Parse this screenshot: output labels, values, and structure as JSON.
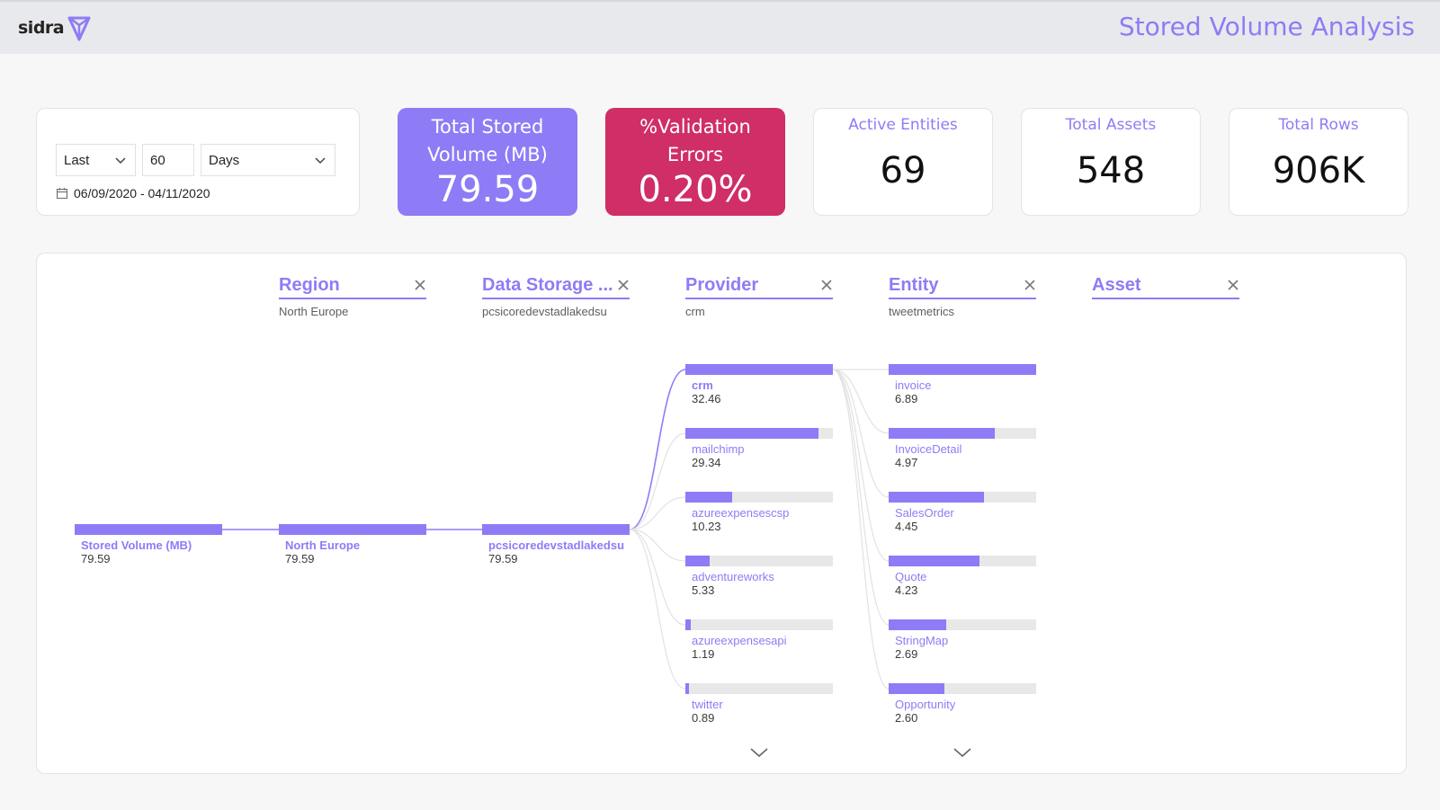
{
  "header": {
    "logo_text": "sidra",
    "title": "Stored Volume Analysis"
  },
  "filter": {
    "period": "Last",
    "amount": "60",
    "unit": "Days",
    "date_range": "06/09/2020 - 04/11/2020"
  },
  "kpis": {
    "total_stored": {
      "label_line1": "Total Stored",
      "label_line2": "Volume (MB)",
      "value": "79.59",
      "color": "#8d7cf6"
    },
    "validation": {
      "label_line1": "%Validation",
      "label_line2": "Errors",
      "value": "0.20%",
      "color": "#cf2e67"
    },
    "active_entities": {
      "label": "Active Entities",
      "value": "69"
    },
    "total_assets": {
      "label": "Total Assets",
      "value": "548"
    },
    "total_rows": {
      "label": "Total Rows",
      "value": "906K"
    }
  },
  "tree": {
    "levels": [
      {
        "title": "Region",
        "selected": "North Europe"
      },
      {
        "title": "Data Storage ...",
        "selected": "pcsicoredevstadlakedsu"
      },
      {
        "title": "Provider",
        "selected": "crm"
      },
      {
        "title": "Entity",
        "selected": "tweetmetrics"
      },
      {
        "title": "Asset",
        "selected": ""
      }
    ],
    "root": {
      "label": "Stored Volume (MB)",
      "value": "79.59",
      "fraction": 1
    },
    "region": {
      "label": "North Europe",
      "value": "79.59",
      "fraction": 1
    },
    "storage": {
      "label": "pcsicoredevstadlakedsu",
      "value": "79.59",
      "fraction": 1
    },
    "providers": [
      {
        "label": "crm",
        "value": "32.46",
        "fraction": 1.0
      },
      {
        "label": "mailchimp",
        "value": "29.34",
        "fraction": 0.904
      },
      {
        "label": "azureexpensescsp",
        "value": "10.23",
        "fraction": 0.315
      },
      {
        "label": "adventureworks",
        "value": "5.33",
        "fraction": 0.164
      },
      {
        "label": "azureexpensesapi",
        "value": "1.19",
        "fraction": 0.037
      },
      {
        "label": "twitter",
        "value": "0.89",
        "fraction": 0.027
      }
    ],
    "entities": [
      {
        "label": "invoice",
        "value": "6.89",
        "fraction": 1.0
      },
      {
        "label": "InvoiceDetail",
        "value": "4.97",
        "fraction": 0.721
      },
      {
        "label": "SalesOrder",
        "value": "4.45",
        "fraction": 0.646
      },
      {
        "label": "Quote",
        "value": "4.23",
        "fraction": 0.614
      },
      {
        "label": "StringMap",
        "value": "2.69",
        "fraction": 0.39
      },
      {
        "label": "Opportunity",
        "value": "2.60",
        "fraction": 0.377
      }
    ]
  }
}
